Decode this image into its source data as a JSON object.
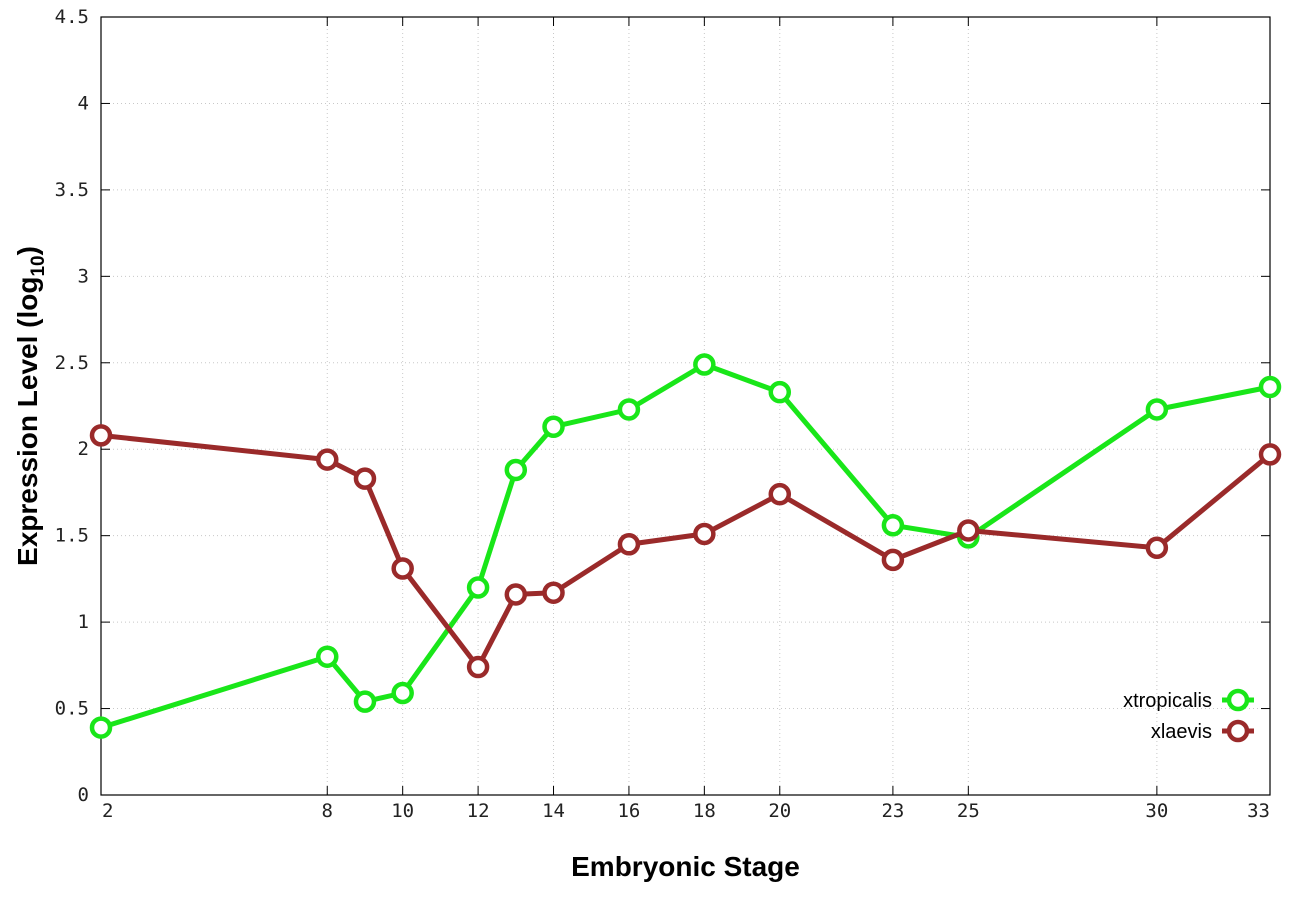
{
  "chart_data": {
    "type": "line",
    "title": "",
    "xlabel": "Embryonic Stage",
    "ylabel": "Expression Level (log",
    "ylabel_sub": "10",
    "ylabel_close": ")",
    "xlim": [
      2,
      33
    ],
    "ylim": [
      0,
      4.5
    ],
    "x_ticks": [
      2,
      8,
      10,
      12,
      14,
      16,
      18,
      20,
      23,
      25,
      30,
      33
    ],
    "x_tick_labels": [
      "2",
      "8",
      "10",
      "12",
      "14",
      "16",
      "18",
      "20",
      "23",
      "25",
      "30",
      "33"
    ],
    "y_ticks": [
      0,
      0.5,
      1,
      1.5,
      2,
      2.5,
      3,
      3.5,
      4,
      4.5
    ],
    "y_tick_labels": [
      "0",
      "0.5",
      "1",
      "1.5",
      "2",
      "2.5",
      "3",
      "3.5",
      "4",
      "4.5"
    ],
    "grid": true,
    "legend_position": "bottom-right",
    "x": [
      2,
      8,
      9,
      10,
      12,
      13,
      14,
      16,
      18,
      20,
      23,
      25,
      30,
      33
    ],
    "series": [
      {
        "name": "xtropicalis",
        "color": "#19e619",
        "values": [
          0.39,
          0.8,
          0.54,
          0.59,
          1.2,
          1.88,
          2.13,
          2.23,
          2.49,
          2.33,
          1.56,
          1.49,
          2.23,
          2.36
        ]
      },
      {
        "name": "xlaevis",
        "color": "#9a2a2a",
        "values": [
          2.08,
          1.94,
          1.83,
          1.31,
          0.74,
          1.16,
          1.17,
          1.45,
          1.51,
          1.74,
          1.36,
          1.53,
          1.43,
          1.97
        ]
      }
    ]
  }
}
